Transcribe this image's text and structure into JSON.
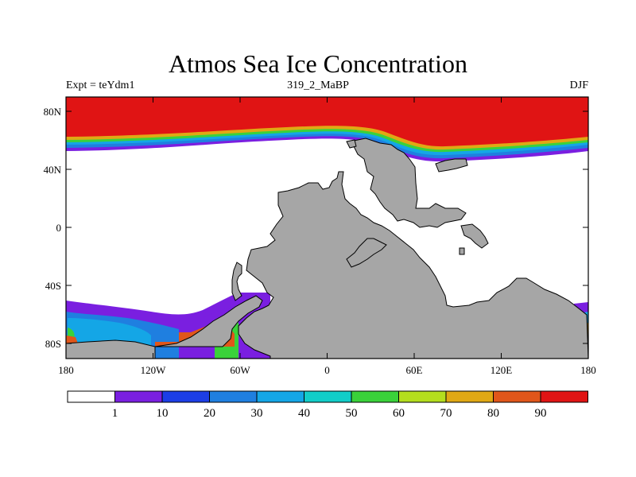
{
  "title": "Atmos Sea Ice Concentration",
  "subtitle_left": "Expt = teYdm1",
  "subtitle_center": "319_2_MaBP",
  "subtitle_right": "DJF",
  "axes": {
    "x_ticks": [
      "180",
      "120W",
      "60W",
      "0",
      "60E",
      "120E",
      "180"
    ],
    "y_ticks": [
      "80N",
      "40N",
      "0",
      "40S",
      "80S"
    ]
  },
  "colors": {
    "land": "#a6a6a6",
    "ocean": "#ffffff",
    "levels": [
      "#ffffff",
      "#7a1fe0",
      "#1c3ee6",
      "#1f7fe0",
      "#14a6e6",
      "#12cdc8",
      "#3ad23a",
      "#b4de1e",
      "#e0a814",
      "#e0561a",
      "#e01414"
    ]
  },
  "colorbar": {
    "labels": [
      "1",
      "10",
      "20",
      "30",
      "40",
      "50",
      "60",
      "70",
      "80",
      "90"
    ]
  }
}
